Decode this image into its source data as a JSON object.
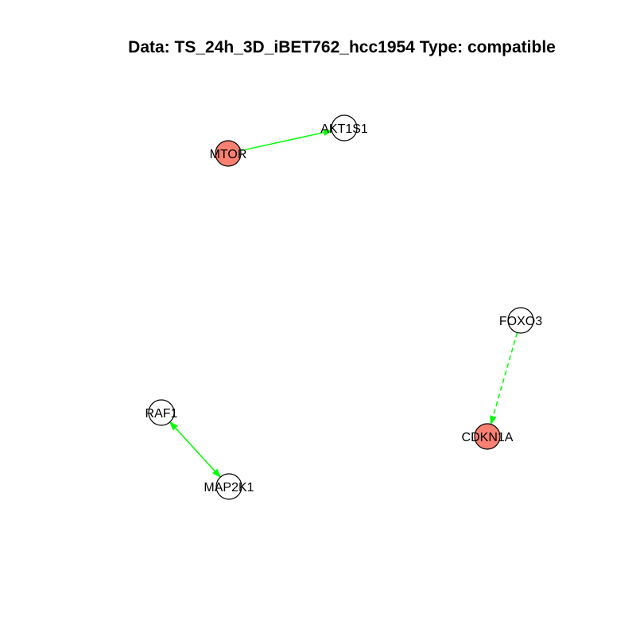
{
  "title": "Data: TS_24h_3D_iBET762_hcc1954 Type: compatible",
  "colors": {
    "highlight_fill": "#fa8072",
    "plain_fill": "#ffffff",
    "node_stroke": "#000000",
    "edge": "#00ff00"
  },
  "nodes": [
    {
      "id": "MTOR",
      "label": "MTOR",
      "highlighted": true
    },
    {
      "id": "AKT1S1",
      "label": "AKT1S1",
      "highlighted": false
    },
    {
      "id": "FOXO3",
      "label": "FOXO3",
      "highlighted": false
    },
    {
      "id": "CDKN1A",
      "label": "CDKN1A",
      "highlighted": true
    },
    {
      "id": "RAF1",
      "label": "RAF1",
      "highlighted": false
    },
    {
      "id": "MAP2K1",
      "label": "MAP2K1",
      "highlighted": false
    }
  ],
  "edges": [
    {
      "from": "MTOR",
      "to": "AKT1S1",
      "style": "solid",
      "direction": "forward"
    },
    {
      "from": "FOXO3",
      "to": "CDKN1A",
      "style": "dashed",
      "direction": "forward"
    },
    {
      "from": "RAF1",
      "to": "MAP2K1",
      "style": "solid",
      "direction": "both"
    }
  ]
}
